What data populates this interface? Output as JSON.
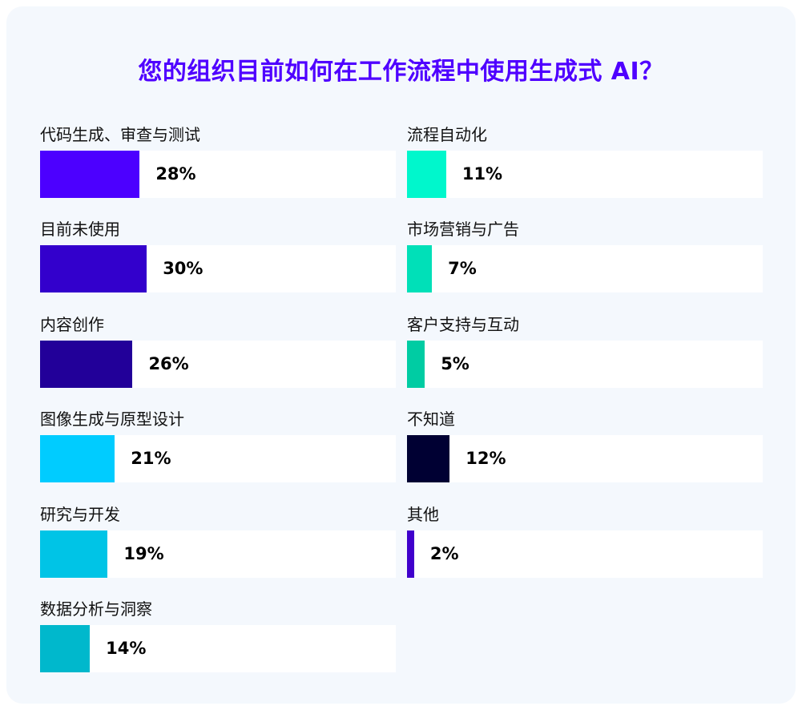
{
  "chart_data": {
    "type": "bar",
    "title": "您的组织目前如何在工作流程中使用生成式 AI？",
    "xlim": [
      0,
      100
    ],
    "unit": "%",
    "columns": [
      {
        "items": [
          {
            "label": "代码生成、审查与测试",
            "value": 28,
            "value_label": "28%",
            "color": "#4c00ff"
          },
          {
            "label": "目前未使用",
            "value": 30,
            "value_label": "30%",
            "color": "#3300cc"
          },
          {
            "label": "内容创作",
            "value": 26,
            "value_label": "26%",
            "color": "#220099"
          },
          {
            "label": "图像生成与原型设计",
            "value": 21,
            "value_label": "21%",
            "color": "#00ccff"
          },
          {
            "label": "研究与开发",
            "value": 19,
            "value_label": "19%",
            "color": "#00c4e6"
          },
          {
            "label": "数据分析与洞察",
            "value": 14,
            "value_label": "14%",
            "color": "#00b8cc"
          }
        ]
      },
      {
        "items": [
          {
            "label": "流程自动化",
            "value": 11,
            "value_label": "11%",
            "color": "#00f7cc"
          },
          {
            "label": "市场营销与广告",
            "value": 7,
            "value_label": "7%",
            "color": "#00e0b8"
          },
          {
            "label": "客户支持与互动",
            "value": 5,
            "value_label": "5%",
            "color": "#00cca3"
          },
          {
            "label": "不知道",
            "value": 12,
            "value_label": "12%",
            "color": "#000033"
          },
          {
            "label": "其他",
            "value": 2,
            "value_label": "2%",
            "color": "#4000cc"
          }
        ]
      }
    ]
  }
}
